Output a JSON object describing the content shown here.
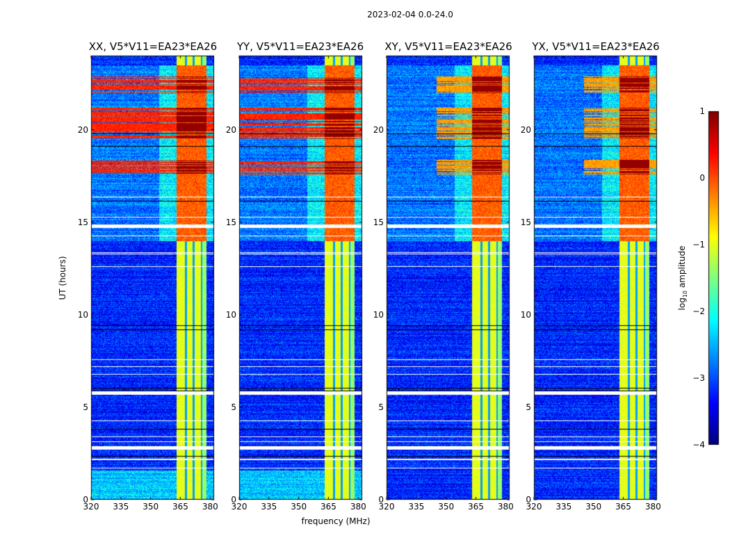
{
  "figure": {
    "suptitle": "2023-02-04 0.0-24.0",
    "xlabel": "frequency (MHz)",
    "ylabel": "UT (hours)",
    "colorbar_label_prefix": "log",
    "colorbar_label_sub": "10",
    "colorbar_label_suffix": " amplitude"
  },
  "chart_data": {
    "type": "heatmap",
    "title": "2023-02-04 0.0-24.0",
    "xlabel": "frequency (MHz)",
    "ylabel": "UT (hours)",
    "xlim": [
      320,
      382
    ],
    "ylim": [
      0,
      24
    ],
    "xticks": [
      320,
      335,
      350,
      365,
      380
    ],
    "xtick_labels": [
      "320",
      "335",
      "350",
      "365",
      "380"
    ],
    "yticks": [
      0,
      5,
      10,
      15,
      20
    ],
    "ytick_labels": [
      "0",
      "5",
      "10",
      "15",
      "20"
    ],
    "colormap": "jet",
    "colorbar": {
      "label": "log10 amplitude",
      "range": [
        -4,
        1
      ],
      "ticks": [
        1,
        0,
        -1,
        -2,
        -3,
        -4
      ],
      "tick_labels": [
        "1",
        "0",
        "−1",
        "−2",
        "−3",
        "−4"
      ],
      "placement": "right"
    },
    "panels": [
      {
        "name": "XX",
        "title": "XX, V5*V11=EA23*EA26",
        "seed": 11,
        "cross": false
      },
      {
        "name": "YY",
        "title": "YY, V5*V11=EA23*EA26",
        "seed": 23,
        "cross": false
      },
      {
        "name": "XY",
        "title": "XY, V5*V11=EA23*EA26",
        "seed": 37,
        "cross": true
      },
      {
        "name": "YX",
        "title": "YX, V5*V11=EA23*EA26",
        "seed": 51,
        "cross": true
      }
    ],
    "features": {
      "bright_band_mhz": [
        363,
        378
      ],
      "band_gaps_mhz": [
        367.5,
        371.5,
        375.5
      ],
      "background_level_log10": -3.2,
      "band_level_log10": -1.0,
      "rfi_intervals_ut_hours": [
        [
          14.0,
          23.5
        ]
      ],
      "strong_rfi_ut_hours": [
        [
          17.6,
          18.4
        ],
        [
          19.5,
          21.2
        ],
        [
          22.0,
          22.9
        ]
      ],
      "flagged_rows_ut_hours": [
        2.8,
        5.8,
        14.8
      ]
    }
  }
}
